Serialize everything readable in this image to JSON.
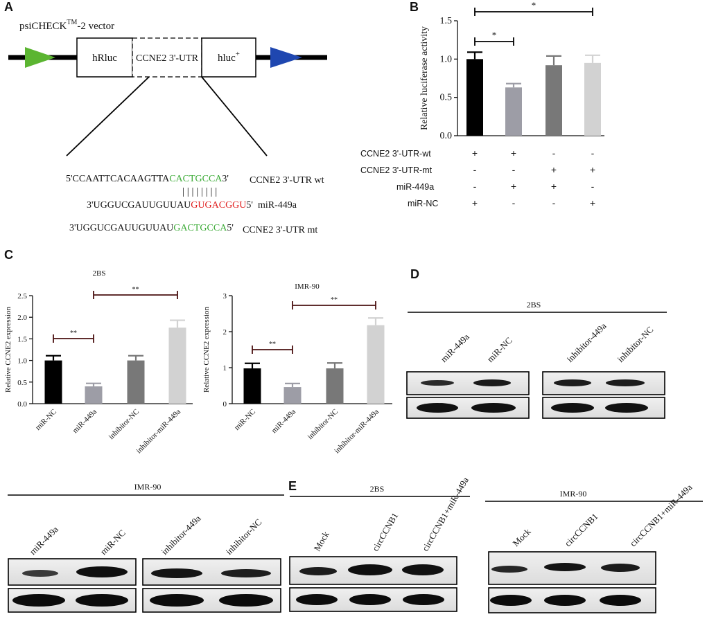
{
  "colors": {
    "black_bar": "#000000",
    "gray_bar": "#9d9da6",
    "dark_gray_bar": "#787878",
    "light_gray_bar": "#d2d2d2",
    "seed_green": "#3aaa35",
    "seed_red": "#e01b1b",
    "arrow_green": "#5bb531",
    "arrow_blue": "#1f47b0"
  },
  "panelA": {
    "label": "A",
    "vector_name": "psiCHECK",
    "vector_sup": "TM",
    "vector_suffix": "-2 vector",
    "box_hrluc": "hRluc",
    "box_utr": "CCNE2 3'-UTR",
    "box_hluc": "hluc",
    "box_hluc_sup": "+",
    "wt_prefix": "5'CCAATTCACAAGTTA",
    "wt_seed": "CACTGCCA",
    "wt_suffix": "3'",
    "wt_label": "CCNE2 3'-UTR wt",
    "pairing": "| | | | | | | |",
    "mir_prefix": "3'UGGUCGAUUGUUAU",
    "mir_seed": "GUGACGGU",
    "mir_suffix": "5'",
    "mir_label": "miR-449a",
    "mt_prefix": "3'UGGUCGAUUGUUAU",
    "mt_seed": "GACTGCCA",
    "mt_suffix": "5'",
    "mt_label": "CCNE2 3'-UTR mt"
  },
  "panelB": {
    "label": "B",
    "row_labels": [
      "CCNE2 3'-UTR-wt",
      "CCNE2 3'-UTR-mt",
      "miR-449a",
      "miR-NC"
    ],
    "signs": [
      [
        "+",
        "+",
        "-",
        "-"
      ],
      [
        "-",
        "-",
        "+",
        "+"
      ],
      [
        "-",
        "+",
        "+",
        "-"
      ],
      [
        "+",
        "-",
        "-",
        "+"
      ]
    ],
    "sig_labels": [
      "*",
      "*"
    ]
  },
  "panelC": {
    "label": "C"
  },
  "panelD": {
    "label": "D",
    "blot_2bs_title": "2BS",
    "blot_2bs_lanes": [
      "miR-449a",
      "miR-NC",
      "inhibitor-449a",
      "inhibitor-NC"
    ],
    "blot_imr_title": "IMR-90",
    "blot_imr_lanes": [
      "miR-449a",
      "miR-NC",
      "inhibitor-449a",
      "inhibitor-NC"
    ]
  },
  "panelE": {
    "label": "E",
    "blot_2bs_title": "2BS",
    "blot_2bs_lanes": [
      "Mock",
      "circCCNB1",
      "circCCNB1+miR-449a"
    ],
    "blot_imr_title": "IMR-90",
    "blot_imr_lanes": [
      "Mock",
      "circCCNB1",
      "circCCNB1+miR-449a"
    ]
  },
  "chart_data": [
    {
      "type": "bar",
      "panel": "B",
      "title": "",
      "xlabel": "",
      "ylabel": "Relative luciferase activity",
      "ylim": [
        0,
        1.5
      ],
      "yticks": [
        "0.0",
        "0.5",
        "1.0",
        "1.5"
      ],
      "categories": [
        "",
        "",
        "",
        ""
      ],
      "values": [
        1.0,
        0.63,
        0.92,
        0.95
      ],
      "errors": [
        0.09,
        0.05,
        0.12,
        0.1
      ],
      "bar_colors": [
        "#000000",
        "#9d9da6",
        "#787878",
        "#d2d2d2"
      ],
      "significance": [
        {
          "from": 0,
          "to": 1,
          "label": "*"
        },
        {
          "from": 0,
          "to": 3,
          "label": "*"
        }
      ]
    },
    {
      "type": "bar",
      "panel": "C",
      "title": "2BS",
      "xlabel": "",
      "ylabel": "Relative CCNE2 expression",
      "ylim": [
        0,
        2.5
      ],
      "yticks": [
        "0.0",
        "0.5",
        "1.0",
        "1.5",
        "2.0",
        "2.5"
      ],
      "categories": [
        "miR-NC",
        "miR-449a",
        "inhibitor-NC",
        "inhibitor-miR-449a"
      ],
      "values": [
        1.0,
        0.4,
        1.0,
        1.76
      ],
      "errors": [
        0.11,
        0.07,
        0.11,
        0.17
      ],
      "bar_colors": [
        "#000000",
        "#9d9da6",
        "#787878",
        "#d2d2d2"
      ],
      "significance": [
        {
          "from": 0,
          "to": 1,
          "label": "**"
        },
        {
          "from": 1,
          "to": 3,
          "label": "**"
        }
      ]
    },
    {
      "type": "bar",
      "panel": "C",
      "title": "IMR-90",
      "xlabel": "",
      "ylabel": "Relative CCNE2 expression",
      "ylim": [
        0,
        3
      ],
      "yticks": [
        "0",
        "1",
        "2",
        "3"
      ],
      "categories": [
        "miR-NC",
        "miR-449a",
        "inhibitor-NC",
        "inhibitor-miR-449a"
      ],
      "values": [
        0.98,
        0.46,
        0.98,
        2.18
      ],
      "errors": [
        0.14,
        0.1,
        0.15,
        0.2
      ],
      "bar_colors": [
        "#000000",
        "#9d9da6",
        "#787878",
        "#d2d2d2"
      ],
      "significance": [
        {
          "from": 0,
          "to": 1,
          "label": "**"
        },
        {
          "from": 1,
          "to": 3,
          "label": "**"
        }
      ]
    }
  ]
}
